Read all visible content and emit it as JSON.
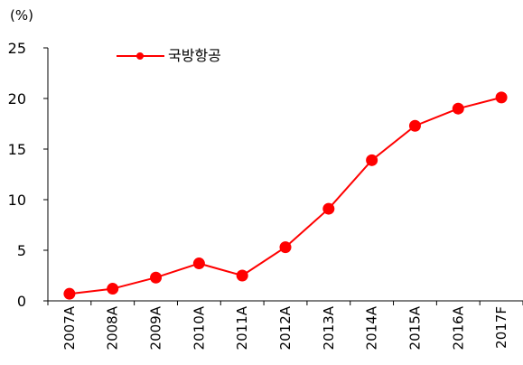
{
  "chart_data": {
    "type": "line",
    "title": "",
    "xlabel": "",
    "ylabel": "",
    "unit_label": "(%)",
    "categories": [
      "2007A",
      "2008A",
      "2009A",
      "2010A",
      "2011A",
      "2012A",
      "2013A",
      "2014A",
      "2015A",
      "2016A",
      "2017F"
    ],
    "series": [
      {
        "name": "국방항공",
        "values": [
          0.7,
          1.2,
          2.3,
          3.7,
          2.5,
          5.3,
          9.1,
          13.9,
          17.3,
          19.0,
          20.1
        ]
      }
    ],
    "ylim": [
      0,
      25
    ],
    "yticks": [
      "0",
      "5",
      "10",
      "15",
      "20",
      "25"
    ],
    "grid": false,
    "legend_position": "top-left",
    "series_color": "#ff0000"
  }
}
